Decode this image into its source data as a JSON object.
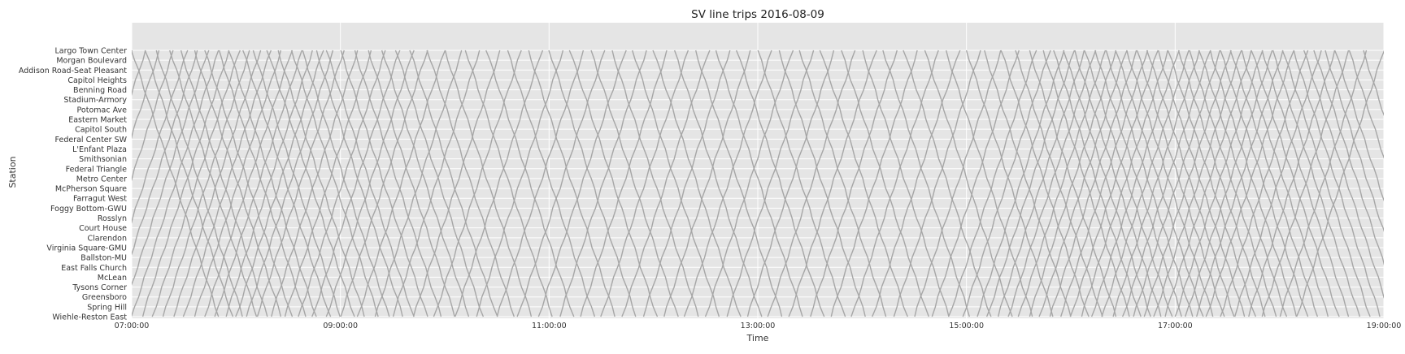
{
  "chart_data": {
    "type": "line",
    "title": "SV line trips 2016-08-09",
    "xlabel": "Time",
    "ylabel": "Station",
    "grid": true,
    "colors": {
      "background": "#e5e5e5",
      "grid": "#ffffff",
      "line": "#a6a6a6"
    },
    "xlim": [
      "07:00:00",
      "19:00:00"
    ],
    "x_ticks": [
      "07:00:00",
      "09:00:00",
      "11:00:00",
      "13:00:00",
      "15:00:00",
      "17:00:00",
      "19:00:00"
    ],
    "stations": [
      "Largo Town Center",
      "Morgan Boulevard",
      "Addison Road-Seat Pleasant",
      "Capitol Heights",
      "Benning Road",
      "Stadium-Armory",
      "Potomac Ave",
      "Eastern Market",
      "Capitol South",
      "Federal Center SW",
      "L'Enfant Plaza",
      "Smithsonian",
      "Federal Triangle",
      "Metro Center",
      "McPherson Square",
      "Farragut West",
      "Foggy Bottom-GWU",
      "Rosslyn",
      "Court House",
      "Clarendon",
      "Virginia Square-GMU",
      "Ballston-MU",
      "East Falls Church",
      "McLean",
      "Tysons Corner",
      "Greensboro",
      "Spring Hill",
      "Wiehle-Reston East"
    ],
    "trip_pattern": {
      "westbound_departure_times": [
        "07:00",
        "07:08",
        "07:14",
        "07:22",
        "07:28",
        "07:36",
        "07:42",
        "07:50",
        "07:56",
        "08:04",
        "08:10",
        "08:18",
        "08:24",
        "08:32",
        "08:38",
        "08:46",
        "08:52",
        "09:00",
        "09:08",
        "09:16",
        "09:24",
        "09:32",
        "09:40",
        "09:50",
        "10:00",
        "10:12",
        "10:24",
        "10:36",
        "10:48",
        "11:00",
        "11:12",
        "11:24",
        "11:36",
        "11:48",
        "12:00",
        "12:12",
        "12:24",
        "12:36",
        "12:48",
        "13:00",
        "13:12",
        "13:24",
        "13:36",
        "13:48",
        "14:00",
        "14:12",
        "14:24",
        "14:36",
        "14:48",
        "15:00",
        "15:10",
        "15:20",
        "15:28",
        "15:36",
        "15:44",
        "15:50",
        "15:56",
        "16:02",
        "16:08",
        "16:14",
        "16:20",
        "16:26",
        "16:32",
        "16:38",
        "16:44",
        "16:50",
        "16:56",
        "17:02",
        "17:08",
        "17:14",
        "17:20",
        "17:26",
        "17:32",
        "17:38",
        "17:44",
        "17:50",
        "17:56",
        "18:02",
        "18:08",
        "18:14",
        "18:20",
        "18:26",
        "18:32",
        "18:40",
        "18:48"
      ],
      "eastbound_departure_times": [
        "06:10",
        "06:18",
        "06:26",
        "06:34",
        "06:42",
        "06:48",
        "06:54",
        "07:00",
        "07:06",
        "07:12",
        "07:18",
        "07:24",
        "07:30",
        "07:36",
        "07:42",
        "07:48",
        "07:54",
        "08:00",
        "08:06",
        "08:12",
        "08:20",
        "08:28",
        "08:36",
        "08:44",
        "08:52",
        "09:00",
        "09:10",
        "09:20",
        "09:30",
        "09:42",
        "09:54",
        "10:06",
        "10:18",
        "10:30",
        "10:42",
        "10:54",
        "11:06",
        "11:18",
        "11:30",
        "11:42",
        "11:54",
        "12:06",
        "12:18",
        "12:30",
        "12:42",
        "12:54",
        "13:06",
        "13:18",
        "13:30",
        "13:42",
        "13:54",
        "14:06",
        "14:18",
        "14:30",
        "14:40",
        "14:50",
        "14:58",
        "15:06",
        "15:12",
        "15:18",
        "15:24",
        "15:30",
        "15:36",
        "15:42",
        "15:48",
        "15:54",
        "16:00",
        "16:06",
        "16:12",
        "16:18",
        "16:24",
        "16:30",
        "16:36",
        "16:42",
        "16:48",
        "16:54",
        "17:00",
        "17:06",
        "17:12",
        "17:18",
        "17:26",
        "17:34",
        "17:42",
        "17:50",
        "18:00",
        "18:10"
      ],
      "end_to_end_run_minutes": 50
    }
  }
}
